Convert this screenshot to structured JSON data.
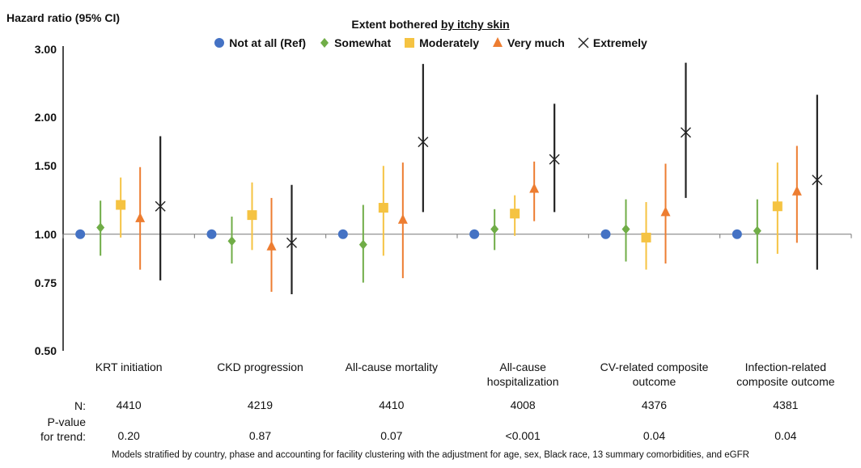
{
  "chart_data": {
    "type": "scatter",
    "subtype": "forest-plot-error-bars",
    "ylabel": "Hazard ratio (95% CI)",
    "yscale": "log",
    "ylim": [
      0.5,
      3.0
    ],
    "yticks": [
      "0.50",
      "0.75",
      "1.00",
      "1.50",
      "2.00",
      "3.00"
    ],
    "reference_line": 1.0,
    "legend": {
      "title_prefix": "Extent bothered ",
      "title_underlined": "by itchy skin",
      "placement": "top-center"
    },
    "categories": [
      "KRT initiation",
      "CKD progression",
      "All-cause mortality",
      "All-cause hospitalization",
      "CV-related composite outcome",
      "Infection-related composite outcome"
    ],
    "series": [
      {
        "name": "Not at all (Ref)",
        "marker": "circle",
        "color": "#4472C4",
        "values": [
          1.0,
          1.0,
          1.0,
          1.0,
          1.0,
          1.0
        ],
        "lower": [
          null,
          null,
          null,
          null,
          null,
          null
        ],
        "upper": [
          null,
          null,
          null,
          null,
          null,
          null
        ]
      },
      {
        "name": "Somewhat",
        "marker": "diamond",
        "color": "#70AD47",
        "values": [
          1.04,
          0.96,
          0.94,
          1.03,
          1.03,
          1.02
        ],
        "lower": [
          0.88,
          0.84,
          0.75,
          0.91,
          0.85,
          0.84
        ],
        "upper": [
          1.22,
          1.11,
          1.19,
          1.16,
          1.23,
          1.23
        ]
      },
      {
        "name": "Moderately",
        "marker": "square",
        "color": "#F5C342",
        "values": [
          1.19,
          1.12,
          1.17,
          1.13,
          0.98,
          1.18
        ],
        "lower": [
          0.98,
          0.91,
          0.88,
          0.99,
          0.81,
          0.89
        ],
        "upper": [
          1.4,
          1.36,
          1.5,
          1.26,
          1.21,
          1.53
        ]
      },
      {
        "name": "Very much",
        "marker": "triangle",
        "color": "#ED7D31",
        "values": [
          1.1,
          0.93,
          1.09,
          1.31,
          1.14,
          1.29
        ],
        "lower": [
          0.81,
          0.71,
          0.77,
          1.08,
          0.84,
          0.95
        ],
        "upper": [
          1.49,
          1.24,
          1.53,
          1.54,
          1.52,
          1.69
        ]
      },
      {
        "name": "Extremely",
        "marker": "x",
        "color": "#222222",
        "values": [
          1.18,
          0.95,
          1.73,
          1.56,
          1.83,
          1.38
        ],
        "lower": [
          0.76,
          0.7,
          1.14,
          1.14,
          1.24,
          0.81
        ],
        "upper": [
          1.79,
          1.34,
          2.75,
          2.17,
          2.77,
          2.29
        ]
      }
    ],
    "table": {
      "n_label": "N:",
      "p_label_line1": "P-value",
      "p_label_line2": "for trend:",
      "n": [
        "4410",
        "4219",
        "4410",
        "4008",
        "4376",
        "4381"
      ],
      "p_trend": [
        "0.20",
        "0.87",
        "0.07",
        "<0.001",
        "0.04",
        "0.04"
      ]
    },
    "footnote": "Models stratified by country, phase and accounting for facility clustering with the adjustment for age, sex, Black race, 13 summary comorbidities, and eGFR"
  }
}
